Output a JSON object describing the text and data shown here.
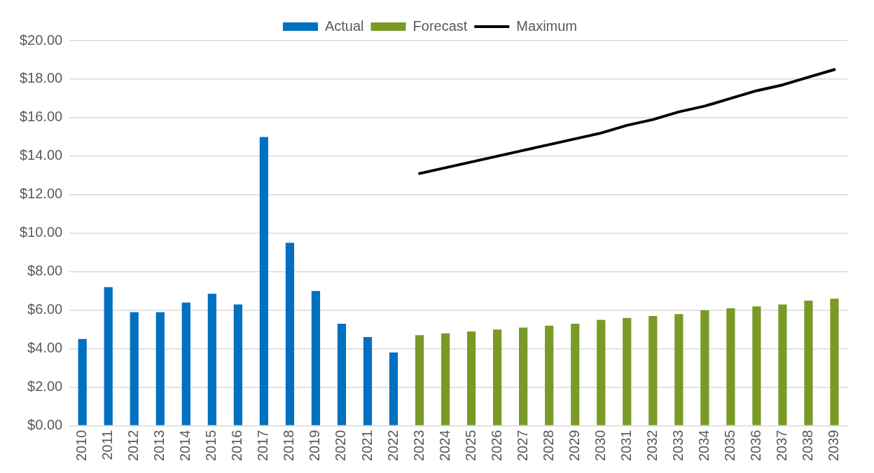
{
  "chart_data": {
    "type": "bar",
    "categories": [
      "2010",
      "2011",
      "2012",
      "2013",
      "2014",
      "2015",
      "2016",
      "2017",
      "2018",
      "2019",
      "2020",
      "2021",
      "2022",
      "2023",
      "2024",
      "2025",
      "2026",
      "2027",
      "2028",
      "2029",
      "2030",
      "2031",
      "2032",
      "2033",
      "2034",
      "2035",
      "2036",
      "2037",
      "2038",
      "2039"
    ],
    "series": [
      {
        "name": "Actual",
        "color": "#0070c0",
        "values": [
          4.5,
          7.2,
          5.9,
          5.9,
          6.4,
          6.85,
          6.3,
          15.0,
          9.5,
          7.0,
          5.3,
          4.6,
          3.8,
          null,
          null,
          null,
          null,
          null,
          null,
          null,
          null,
          null,
          null,
          null,
          null,
          null,
          null,
          null,
          null,
          null
        ]
      },
      {
        "name": "Forecast",
        "color": "#7a9a26",
        "values": [
          null,
          null,
          null,
          null,
          null,
          null,
          null,
          null,
          null,
          null,
          null,
          null,
          null,
          4.7,
          4.8,
          4.9,
          5.0,
          5.1,
          5.2,
          5.3,
          5.5,
          5.6,
          5.7,
          5.8,
          6.0,
          6.1,
          6.2,
          6.3,
          6.5,
          6.6
        ]
      },
      {
        "name": "Maximum",
        "type": "line",
        "color": "#000000",
        "values": [
          null,
          null,
          null,
          null,
          null,
          null,
          null,
          null,
          null,
          null,
          null,
          null,
          null,
          13.1,
          13.4,
          13.7,
          14.0,
          14.3,
          14.6,
          14.9,
          15.2,
          15.6,
          15.9,
          16.3,
          16.6,
          17.0,
          17.4,
          17.7,
          18.1,
          18.5
        ]
      }
    ],
    "ylim": [
      0,
      20
    ],
    "yticks": [
      {
        "value": 0,
        "label": "$0.00"
      },
      {
        "value": 2,
        "label": "$2.00"
      },
      {
        "value": 4,
        "label": "$4.00"
      },
      {
        "value": 6,
        "label": "$6.00"
      },
      {
        "value": 8,
        "label": "$8.00"
      },
      {
        "value": 10,
        "label": "$10.00"
      },
      {
        "value": 12,
        "label": "$12.00"
      },
      {
        "value": 14,
        "label": "$14.00"
      },
      {
        "value": 16,
        "label": "$16.00"
      },
      {
        "value": 18,
        "label": "$18.00"
      },
      {
        "value": 20,
        "label": "$20.00"
      }
    ],
    "grid": "y",
    "legend": "top",
    "marker": "none",
    "line_style": "solid"
  }
}
